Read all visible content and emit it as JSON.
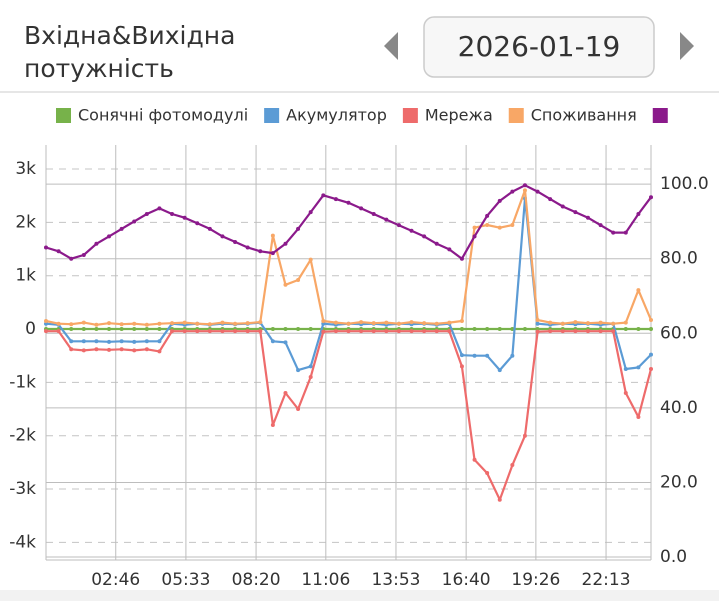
{
  "header": {
    "title": [
      "Вхідна&Вихідна",
      "потужність"
    ],
    "date": "2026-01-19"
  },
  "chart_data": {
    "type": "line",
    "x": [
      0,
      30,
      60,
      90,
      120,
      150,
      180,
      210,
      240,
      270,
      300,
      330,
      360,
      390,
      420,
      450,
      480,
      510,
      540,
      570,
      600,
      630,
      660,
      690,
      720,
      750,
      780,
      810,
      840,
      870,
      900,
      930,
      960,
      990,
      1020,
      1050,
      1080,
      1110,
      1140,
      1170,
      1200,
      1230,
      1260,
      1290,
      1320,
      1350,
      1380,
      1410,
      1440
    ],
    "xlim": [
      0,
      1440
    ],
    "xticks": [
      {
        "value": 166,
        "label": "02:46"
      },
      {
        "value": 333,
        "label": "05:33"
      },
      {
        "value": 500,
        "label": "08:20"
      },
      {
        "value": 666,
        "label": "11:06"
      },
      {
        "value": 833,
        "label": "13:53"
      },
      {
        "value": 1000,
        "label": "16:40"
      },
      {
        "value": 1166,
        "label": "19:26"
      },
      {
        "value": 1333,
        "label": "22:13"
      }
    ],
    "ylim": [
      -4330,
      3450
    ],
    "yticks": [
      {
        "value": 3000,
        "label": "3k"
      },
      {
        "value": 2000,
        "label": "2k"
      },
      {
        "value": 1000,
        "label": "1k"
      },
      0,
      {
        "value": -1000,
        "label": "-1k"
      },
      {
        "value": -2000,
        "label": "-2k"
      },
      {
        "value": -3000,
        "label": "-3k"
      },
      {
        "value": -4000,
        "label": "-4k"
      }
    ],
    "y2lim": [
      -0.8,
      110.5
    ],
    "y2ticks": [
      {
        "value": 100,
        "label": "100.0"
      },
      {
        "value": 80,
        "label": "80.0"
      },
      {
        "value": 60,
        "label": "60.0"
      },
      {
        "value": 40,
        "label": "40.0"
      },
      {
        "value": 20,
        "label": "20.0"
      },
      {
        "value": 0,
        "label": "0.0"
      }
    ],
    "grid": true,
    "series": [
      {
        "name": "Сонячні фотомодулі",
        "color": "#77b24a",
        "values": [
          0,
          0,
          0,
          0,
          0,
          0,
          0,
          0,
          0,
          0,
          0,
          0,
          0,
          0,
          0,
          0,
          0,
          0,
          0,
          0,
          0,
          0,
          0,
          0,
          0,
          0,
          0,
          0,
          0,
          0,
          0,
          0,
          0,
          0,
          0,
          0,
          0,
          0,
          0,
          0,
          0,
          0,
          0,
          0,
          0,
          0,
          0,
          0,
          0
        ]
      },
      {
        "name": "Акумулятор",
        "color": "#5b9bd5",
        "values": [
          100,
          80,
          -230,
          -230,
          -230,
          -240,
          -230,
          -240,
          -230,
          -230,
          100,
          80,
          100,
          80,
          100,
          90,
          100,
          120,
          -230,
          -250,
          -770,
          -700,
          100,
          80,
          100,
          90,
          100,
          80,
          100,
          90,
          100,
          80,
          100,
          -490,
          -500,
          -500,
          -770,
          -500,
          2450,
          100,
          80,
          100,
          90,
          100,
          80,
          100,
          -750,
          -720,
          -480
        ]
      },
      {
        "name": "Мережа",
        "color": "#ee6b6b",
        "values": [
          -40,
          -40,
          -380,
          -400,
          -380,
          -390,
          -380,
          -400,
          -380,
          -420,
          -40,
          -40,
          -40,
          -40,
          -40,
          -40,
          -40,
          -40,
          -1800,
          -1200,
          -1500,
          -900,
          -50,
          -40,
          -40,
          -40,
          -40,
          -40,
          -40,
          -40,
          -40,
          -40,
          -40,
          -700,
          -2450,
          -2700,
          -3200,
          -2550,
          -2000,
          -50,
          -40,
          -40,
          -40,
          -40,
          -40,
          -40,
          -1200,
          -1650,
          -750
        ]
      },
      {
        "name": "Споживання",
        "color": "#f8a766",
        "values": [
          150,
          100,
          90,
          120,
          80,
          110,
          90,
          100,
          80,
          100,
          110,
          120,
          100,
          90,
          120,
          100,
          110,
          130,
          1750,
          830,
          920,
          1300,
          150,
          120,
          100,
          130,
          110,
          120,
          100,
          130,
          110,
          100,
          120,
          150,
          1900,
          1950,
          1900,
          1950,
          2600,
          170,
          120,
          100,
          130,
          110,
          120,
          100,
          120,
          730,
          170
        ]
      },
      {
        "color": "#8b1a8b",
        "axis": "y2",
        "values": [
          83,
          82,
          80,
          81,
          84,
          86,
          88,
          90,
          92,
          93.5,
          92,
          91,
          89.5,
          88,
          86,
          84.5,
          83,
          82,
          81.5,
          84,
          88,
          92.5,
          97,
          96,
          95,
          93.5,
          92,
          90.5,
          89,
          87.5,
          86,
          84,
          82.5,
          80,
          86,
          91.5,
          95.5,
          98,
          99.7,
          98,
          96,
          94,
          92.5,
          91,
          89,
          87,
          87,
          92,
          96.5
        ]
      }
    ]
  }
}
